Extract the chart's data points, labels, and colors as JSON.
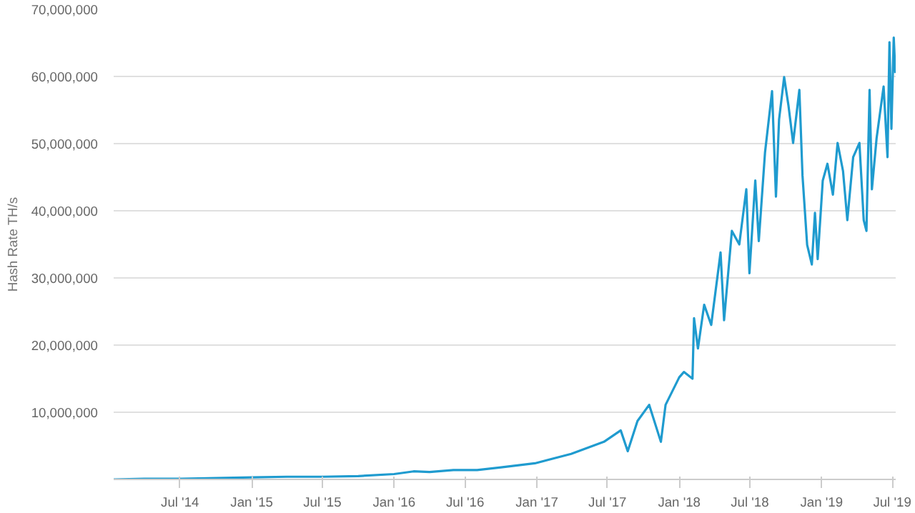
{
  "chart_data": {
    "type": "line",
    "ylabel": "Hash Rate TH/s",
    "grid": "y",
    "marker": "none",
    "line_style": "solid",
    "xlim": [
      "2014-01-12",
      "2019-07-10"
    ],
    "ylim": [
      0,
      70000000
    ],
    "yticks": [
      {
        "value": 0,
        "label": null
      },
      {
        "value": 10000000,
        "label": "10,000,000"
      },
      {
        "value": 20000000,
        "label": "20,000,000"
      },
      {
        "value": 30000000,
        "label": "30,000,000"
      },
      {
        "value": 40000000,
        "label": "40,000,000"
      },
      {
        "value": 50000000,
        "label": "50,000,000"
      },
      {
        "value": 60000000,
        "label": "60,000,000"
      },
      {
        "value": 70000000,
        "label": "70,000,000"
      }
    ],
    "xticks": [
      {
        "value": "2014-07-01",
        "label": "Jul '14"
      },
      {
        "value": "2015-01-01",
        "label": "Jan '15"
      },
      {
        "value": "2015-07-01",
        "label": "Jul '15"
      },
      {
        "value": "2016-01-01",
        "label": "Jan '16"
      },
      {
        "value": "2016-07-01",
        "label": "Jul '16"
      },
      {
        "value": "2017-01-01",
        "label": "Jan '17"
      },
      {
        "value": "2017-07-01",
        "label": "Jul '17"
      },
      {
        "value": "2018-01-01",
        "label": "Jan '18"
      },
      {
        "value": "2018-07-01",
        "label": "Jul '18"
      },
      {
        "value": "2019-01-01",
        "label": "Jan '19"
      },
      {
        "value": "2019-07-01",
        "label": "Jul '19"
      }
    ],
    "series": [
      {
        "color": "#1f9bcf",
        "x": [
          "2014-01-12",
          "2014-04-01",
          "2014-07-01",
          "2014-10-01",
          "2015-01-01",
          "2015-04-01",
          "2015-07-01",
          "2015-10-01",
          "2016-01-01",
          "2016-02-20",
          "2016-04-01",
          "2016-06-01",
          "2016-08-01",
          "2016-10-01",
          "2016-12-27",
          "2017-03-30",
          "2017-06-22",
          "2017-08-04",
          "2017-08-22",
          "2017-09-16",
          "2017-10-16",
          "2017-11-15",
          "2017-11-27",
          "2018-01-01",
          "2018-01-13",
          "2018-02-04",
          "2018-02-08",
          "2018-02-18",
          "2018-03-06",
          "2018-03-24",
          "2018-04-17",
          "2018-04-26",
          "2018-05-16",
          "2018-06-04",
          "2018-06-22",
          "2018-06-30",
          "2018-07-15",
          "2018-07-24",
          "2018-08-09",
          "2018-08-27",
          "2018-09-06",
          "2018-09-14",
          "2018-09-27",
          "2018-10-08",
          "2018-10-20",
          "2018-11-05",
          "2018-11-13",
          "2018-11-25",
          "2018-12-07",
          "2018-12-15",
          "2018-12-22",
          "2019-01-04",
          "2019-01-16",
          "2019-01-30",
          "2019-02-11",
          "2019-02-25",
          "2019-03-08",
          "2019-03-23",
          "2019-04-08",
          "2019-04-19",
          "2019-04-26",
          "2019-05-04",
          "2019-05-10",
          "2019-05-22",
          "2019-06-09",
          "2019-06-19",
          "2019-06-24",
          "2019-06-29",
          "2019-07-05",
          "2019-07-09"
        ],
        "values": [
          0,
          100000,
          100000,
          200000,
          300000,
          400000,
          400000,
          500000,
          800000,
          1200000,
          1100000,
          1400000,
          1400000,
          1800000,
          2400000,
          3800000,
          5600000,
          7300000,
          4200000,
          8700000,
          11100000,
          5600000,
          11100000,
          15200000,
          16000000,
          15000000,
          24000000,
          19500000,
          26000000,
          23000000,
          33800000,
          23700000,
          37000000,
          35000000,
          43200000,
          30700000,
          44500000,
          35500000,
          48700000,
          57800000,
          42100000,
          53600000,
          59900000,
          55700000,
          50100000,
          58000000,
          45300000,
          34900000,
          32000000,
          39700000,
          32800000,
          44500000,
          47000000,
          42400000,
          50100000,
          45900000,
          38600000,
          48000000,
          50100000,
          38600000,
          37000000,
          58000000,
          43200000,
          50800000,
          58500000,
          48000000,
          65100000,
          52200000,
          65800000,
          60500000
        ]
      }
    ]
  }
}
